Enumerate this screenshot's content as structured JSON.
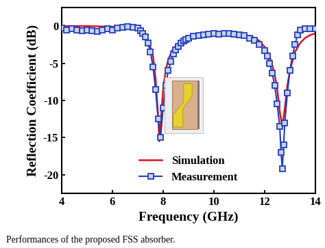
{
  "chart_data": {
    "type": "line",
    "x_label": "Frequency (GHz)",
    "y_label": "Reflection Coefficient (dB)",
    "annotations": [
      "Performances of the proposed FSS absorber."
    ],
    "xlim": [
      4,
      14
    ],
    "xticks": [
      4,
      6,
      8,
      10,
      12,
      14
    ],
    "ylim": [
      -22.5,
      2.5
    ],
    "yticks": [
      -20,
      -15,
      -10,
      -5,
      0
    ],
    "legend": "lower center",
    "series": [
      {
        "name": "Simulation",
        "color": "#e0101a",
        "marker": "none",
        "line_style": "solid",
        "x": [
          4,
          4.5,
          5,
          5.5,
          6,
          6.5,
          7,
          7.2,
          7.4,
          7.6,
          7.7,
          7.8,
          7.85,
          7.9,
          8.0,
          8.1,
          8.2,
          8.4,
          8.6,
          8.8,
          9,
          9.5,
          10,
          10.5,
          11,
          11.5,
          11.8,
          12,
          12.2,
          12.4,
          12.5,
          12.6,
          12.7,
          12.8,
          12.9,
          13,
          13.2,
          13.4,
          13.6,
          13.8,
          14
        ],
        "values": [
          0,
          0,
          0,
          -0.05,
          -0.1,
          -0.2,
          -0.5,
          -0.9,
          -1.8,
          -4,
          -7,
          -12,
          -15.5,
          -13,
          -8.5,
          -6,
          -4.5,
          -3,
          -2.3,
          -1.8,
          -1.5,
          -1.1,
          -0.9,
          -0.9,
          -1,
          -1.4,
          -2,
          -2.8,
          -4,
          -6.5,
          -8.5,
          -11.5,
          -13.5,
          -11,
          -8,
          -6,
          -3.5,
          -2.3,
          -1.6,
          -1.2,
          -1
        ]
      },
      {
        "name": "Measurement",
        "color": "#1f3fbf",
        "marker": "square",
        "line_style": "solid",
        "x": [
          4.0,
          4.2,
          4.4,
          4.6,
          4.8,
          5.0,
          5.2,
          5.4,
          5.6,
          5.8,
          6.0,
          6.2,
          6.4,
          6.6,
          6.8,
          7.0,
          7.1,
          7.2,
          7.3,
          7.4,
          7.5,
          7.6,
          7.7,
          7.8,
          7.9,
          8.0,
          8.1,
          8.2,
          8.3,
          8.4,
          8.5,
          8.6,
          8.7,
          8.8,
          8.9,
          9.0,
          9.2,
          9.4,
          9.6,
          9.8,
          10.0,
          10.2,
          10.4,
          10.6,
          10.8,
          11.0,
          11.2,
          11.4,
          11.6,
          11.8,
          12.0,
          12.1,
          12.2,
          12.3,
          12.4,
          12.5,
          12.6,
          12.65,
          12.7,
          12.75,
          12.8,
          12.9,
          13.0,
          13.1,
          13.2,
          13.3,
          13.4,
          13.6,
          13.8,
          14.0
        ],
        "values": [
          -0.3,
          -0.5,
          -0.4,
          -0.5,
          -0.6,
          -0.5,
          -0.6,
          -0.7,
          -0.5,
          -0.4,
          -0.5,
          -0.3,
          -0.2,
          -0.1,
          -0.2,
          -0.3,
          -0.6,
          -1.0,
          -1.5,
          -2.3,
          -3.5,
          -5.5,
          -8.5,
          -12.5,
          -15,
          -11,
          -8,
          -6,
          -4.8,
          -3.8,
          -3.2,
          -2.7,
          -2.3,
          -2.0,
          -1.8,
          -1.6,
          -1.4,
          -1.3,
          -1.2,
          -1.1,
          -1.0,
          -1.1,
          -1.0,
          -1.0,
          -1.1,
          -1.2,
          -1.3,
          -1.6,
          -1.9,
          -2.5,
          -3.3,
          -4.0,
          -5.0,
          -6.3,
          -8.0,
          -10.5,
          -13.5,
          -17,
          -19.2,
          -16,
          -13,
          -9,
          -6,
          -4,
          -2.5,
          -1.2,
          -0.5,
          -0.4,
          -0.4,
          -0.4
        ]
      }
    ]
  }
}
